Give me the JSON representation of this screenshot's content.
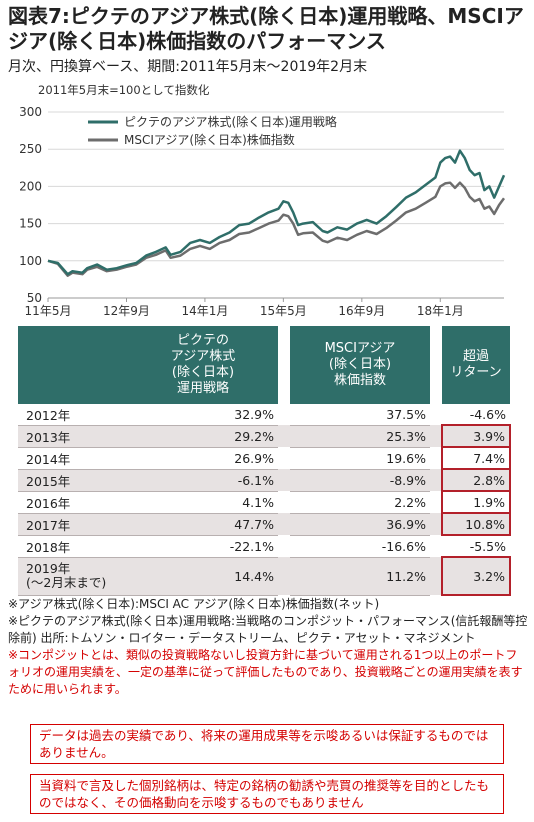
{
  "title": "図表7:ピクテのアジア株式(除く日本)運用戦略、MSCIアジア(除く日本)株価指数のパフォーマンス",
  "subtitle": "月次、円換算ベース、期間:2011年5月末〜2019年2月末",
  "chart_data": {
    "type": "line",
    "note": "2011年5月末=100として指数化",
    "ylim": [
      50,
      300
    ],
    "y_ticks": [
      50,
      100,
      150,
      200,
      250,
      300
    ],
    "x_range": [
      2011.333,
      2019.083
    ],
    "x_ticks": [
      {
        "label": "11年5月",
        "x": 2011.333
      },
      {
        "label": "12年9月",
        "x": 2012.667
      },
      {
        "label": "14年1月",
        "x": 2014.0
      },
      {
        "label": "15年5月",
        "x": 2015.333
      },
      {
        "label": "16年9月",
        "x": 2016.667
      },
      {
        "label": "18年1月",
        "x": 2018.0
      }
    ],
    "grid": true,
    "series": [
      {
        "name": "ピクテのアジア株式(除く日本)運用戦略",
        "color": "#2f6e69",
        "points": [
          [
            2011.333,
            100
          ],
          [
            2011.5,
            97
          ],
          [
            2011.667,
            82
          ],
          [
            2011.75,
            86
          ],
          [
            2011.917,
            84
          ],
          [
            2012.0,
            90
          ],
          [
            2012.167,
            95
          ],
          [
            2012.333,
            88
          ],
          [
            2012.5,
            90
          ],
          [
            2012.667,
            94
          ],
          [
            2012.833,
            97
          ],
          [
            2013.0,
            107
          ],
          [
            2013.167,
            112
          ],
          [
            2013.333,
            118
          ],
          [
            2013.417,
            108
          ],
          [
            2013.583,
            112
          ],
          [
            2013.75,
            124
          ],
          [
            2013.917,
            128
          ],
          [
            2014.083,
            124
          ],
          [
            2014.25,
            132
          ],
          [
            2014.417,
            138
          ],
          [
            2014.583,
            148
          ],
          [
            2014.75,
            150
          ],
          [
            2014.917,
            158
          ],
          [
            2015.083,
            165
          ],
          [
            2015.25,
            170
          ],
          [
            2015.333,
            180
          ],
          [
            2015.417,
            178
          ],
          [
            2015.5,
            165
          ],
          [
            2015.583,
            148
          ],
          [
            2015.667,
            150
          ],
          [
            2015.833,
            152
          ],
          [
            2016.0,
            140
          ],
          [
            2016.083,
            138
          ],
          [
            2016.25,
            145
          ],
          [
            2016.417,
            142
          ],
          [
            2016.583,
            150
          ],
          [
            2016.75,
            155
          ],
          [
            2016.917,
            150
          ],
          [
            2017.083,
            160
          ],
          [
            2017.25,
            172
          ],
          [
            2017.417,
            185
          ],
          [
            2017.583,
            192
          ],
          [
            2017.75,
            202
          ],
          [
            2017.917,
            212
          ],
          [
            2018.0,
            232
          ],
          [
            2018.083,
            238
          ],
          [
            2018.167,
            240
          ],
          [
            2018.25,
            232
          ],
          [
            2018.333,
            248
          ],
          [
            2018.417,
            238
          ],
          [
            2018.5,
            222
          ],
          [
            2018.583,
            215
          ],
          [
            2018.667,
            218
          ],
          [
            2018.75,
            195
          ],
          [
            2018.833,
            200
          ],
          [
            2018.917,
            185
          ],
          [
            2019.0,
            200
          ],
          [
            2019.083,
            215
          ]
        ]
      },
      {
        "name": "MSCIアジア(除く日本)株価指数",
        "color": "#6d6d6d",
        "points": [
          [
            2011.333,
            100
          ],
          [
            2011.5,
            96
          ],
          [
            2011.667,
            80
          ],
          [
            2011.75,
            84
          ],
          [
            2011.917,
            82
          ],
          [
            2012.0,
            88
          ],
          [
            2012.167,
            92
          ],
          [
            2012.333,
            86
          ],
          [
            2012.5,
            88
          ],
          [
            2012.667,
            92
          ],
          [
            2012.833,
            95
          ],
          [
            2013.0,
            104
          ],
          [
            2013.167,
            108
          ],
          [
            2013.333,
            114
          ],
          [
            2013.417,
            104
          ],
          [
            2013.583,
            107
          ],
          [
            2013.75,
            116
          ],
          [
            2013.917,
            120
          ],
          [
            2014.083,
            116
          ],
          [
            2014.25,
            124
          ],
          [
            2014.417,
            128
          ],
          [
            2014.583,
            136
          ],
          [
            2014.75,
            138
          ],
          [
            2014.917,
            144
          ],
          [
            2015.083,
            150
          ],
          [
            2015.25,
            154
          ],
          [
            2015.333,
            162
          ],
          [
            2015.417,
            160
          ],
          [
            2015.5,
            150
          ],
          [
            2015.583,
            135
          ],
          [
            2015.667,
            137
          ],
          [
            2015.833,
            138
          ],
          [
            2016.0,
            127
          ],
          [
            2016.083,
            125
          ],
          [
            2016.25,
            131
          ],
          [
            2016.417,
            128
          ],
          [
            2016.583,
            135
          ],
          [
            2016.75,
            140
          ],
          [
            2016.917,
            136
          ],
          [
            2017.083,
            144
          ],
          [
            2017.25,
            154
          ],
          [
            2017.417,
            165
          ],
          [
            2017.583,
            170
          ],
          [
            2017.75,
            178
          ],
          [
            2017.917,
            186
          ],
          [
            2018.0,
            200
          ],
          [
            2018.083,
            204
          ],
          [
            2018.167,
            205
          ],
          [
            2018.25,
            198
          ],
          [
            2018.333,
            205
          ],
          [
            2018.417,
            198
          ],
          [
            2018.5,
            186
          ],
          [
            2018.583,
            180
          ],
          [
            2018.667,
            183
          ],
          [
            2018.75,
            170
          ],
          [
            2018.833,
            173
          ],
          [
            2018.917,
            163
          ],
          [
            2019.0,
            175
          ],
          [
            2019.083,
            184
          ]
        ]
      }
    ]
  },
  "table": {
    "headers": [
      "ピクテの\nアジア株式\n(除く日本)\n運用戦略",
      "MSCIアジア\n(除く日本)\n株価指数",
      "超過\nリターン"
    ],
    "rows": [
      {
        "year": "2012年",
        "strategy": "32.9%",
        "index": "37.5%",
        "excess": "-4.6%",
        "highlight": false
      },
      {
        "year": "2013年",
        "strategy": "29.2%",
        "index": "25.3%",
        "excess": "3.9%",
        "highlight": true
      },
      {
        "year": "2014年",
        "strategy": "26.9%",
        "index": "19.6%",
        "excess": "7.4%",
        "highlight": true
      },
      {
        "year": "2015年",
        "strategy": "-6.1%",
        "index": "-8.9%",
        "excess": "2.8%",
        "highlight": true
      },
      {
        "year": "2016年",
        "strategy": "4.1%",
        "index": "2.2%",
        "excess": "1.9%",
        "highlight": true
      },
      {
        "year": "2017年",
        "strategy": "47.7%",
        "index": "36.9%",
        "excess": "10.8%",
        "highlight": true
      },
      {
        "year": "2018年",
        "strategy": "-22.1%",
        "index": "-16.6%",
        "excess": "-5.5%",
        "highlight": false
      },
      {
        "year": "2019年\n(〜2月末まで)",
        "strategy": "14.4%",
        "index": "11.2%",
        "excess": "3.2%",
        "highlight": true
      }
    ]
  },
  "notes": {
    "line1": "※アジア株式(除く日本):MSCI AC アジア(除く日本)株価指数(ネット)",
    "line2": "※ピクテのアジア株式(除く日本)運用戦略:当戦略のコンポジット・パフォーマンス(信託報酬等控除前) 出所:トムソン・ロイター・データストリーム、ピクテ・アセット・マネジメント",
    "composite": "※コンポジットとは、類似の投資戦略ないし投資方針に基づいて運用される1つ以上のポートフォリオの運用実績を、一定の基準に従って評価したものであり、投資戦略ごとの運用実績を表すために用いられます。"
  },
  "disclaimers": {
    "box1": "データは過去の実績であり、将来の運用成果等を示唆あるいは保証するものではありません。",
    "box2": "当資料で言及した個別銘柄は、特定の銘柄の勧誘や売買の推奨等を目的としたものではなく、その価格動向を示唆するものでもありません"
  }
}
